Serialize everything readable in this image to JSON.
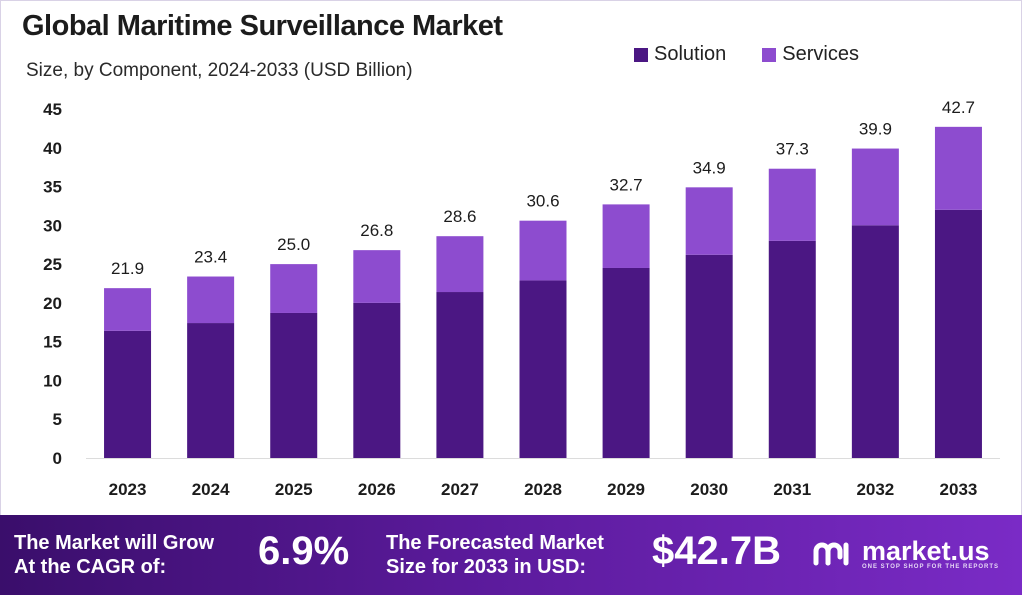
{
  "title": "Global Maritime Surveillance Market",
  "subtitle": "Size, by Component, 2024-2033 (USD Billion)",
  "colors": {
    "solution": "#4b1783",
    "services": "#8d4ccf",
    "footer": "#5a1a9a"
  },
  "chart_data": {
    "type": "bar",
    "stacked": true,
    "categories": [
      "2023",
      "2024",
      "2025",
      "2026",
      "2027",
      "2028",
      "2029",
      "2030",
      "2031",
      "2032",
      "2033"
    ],
    "series": [
      {
        "name": "Solution",
        "values": [
          16.4,
          17.4,
          18.7,
          20.0,
          21.4,
          22.9,
          24.5,
          26.2,
          28.0,
          30.0,
          32.0
        ]
      },
      {
        "name": "Services",
        "values": [
          5.5,
          6.0,
          6.3,
          6.8,
          7.2,
          7.7,
          8.2,
          8.7,
          9.3,
          9.9,
          10.7
        ]
      }
    ],
    "totals": [
      "21.9",
      "23.4",
      "25.0",
      "26.8",
      "28.6",
      "30.6",
      "32.7",
      "34.9",
      "37.3",
      "39.9",
      "42.7"
    ],
    "yticks": [
      0,
      5,
      10,
      15,
      20,
      25,
      30,
      35,
      40,
      45
    ],
    "ylim": [
      0,
      45
    ],
    "legend_position": "top-right",
    "grid": false
  },
  "footer": {
    "cagr_label_line1": "The Market will Grow",
    "cagr_label_line2": "At the CAGR of:",
    "cagr_value": "6.9%",
    "forecast_label_line1": "The Forecasted Market",
    "forecast_label_line2": "Size for 2033 in USD:",
    "forecast_value": "$42.7B",
    "brand": "market.us",
    "brand_tagline": "ONE STOP SHOP FOR THE REPORTS"
  }
}
